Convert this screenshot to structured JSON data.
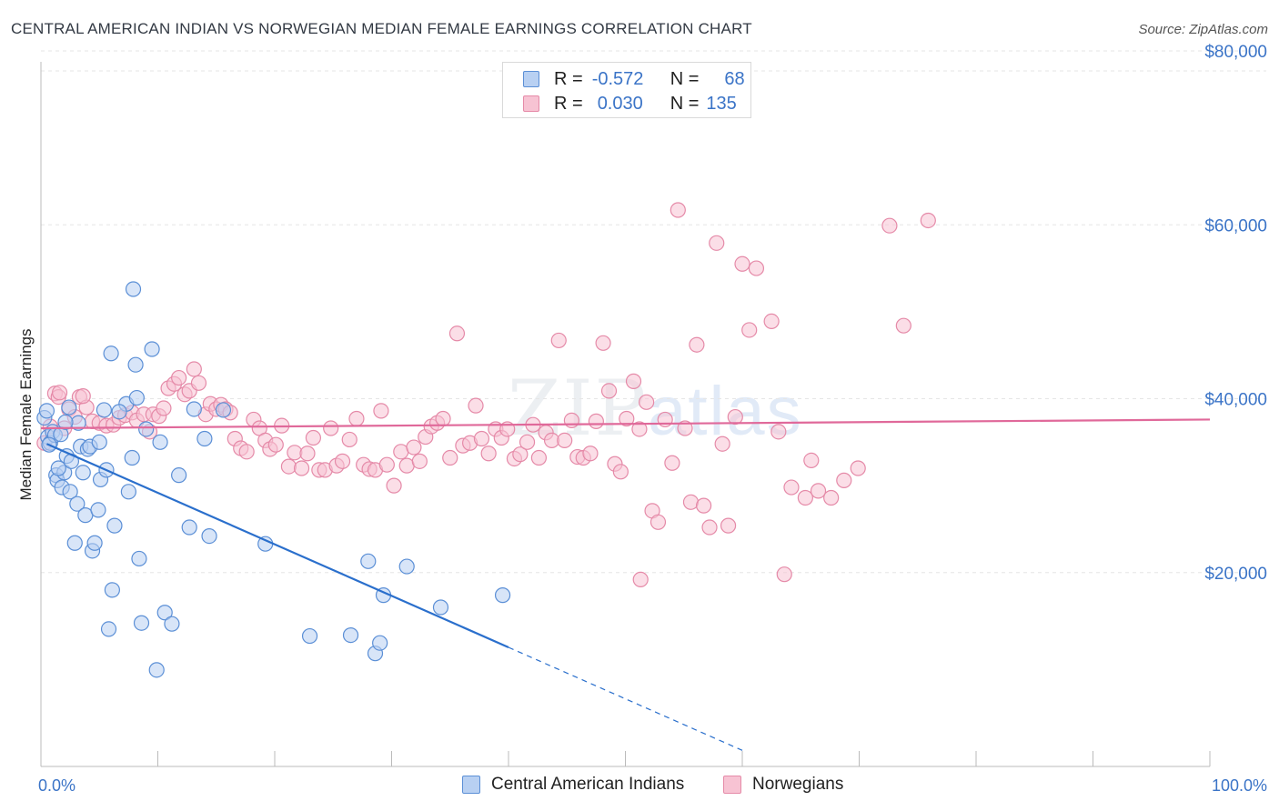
{
  "title": "CENTRAL AMERICAN INDIAN VS NORWEGIAN MEDIAN FEMALE EARNINGS CORRELATION CHART",
  "source": "Source: ZipAtlas.com",
  "watermark": {
    "zip": "ZIP",
    "atlas": "atlas"
  },
  "legend": {
    "r_label": "R =",
    "n_label": "N =",
    "series": [
      {
        "name": "Central American Indians",
        "r": "-0.572",
        "n": "68"
      },
      {
        "name": "Norwegians",
        "r": "0.030",
        "n": "135"
      }
    ]
  },
  "colors": {
    "blue_fill": "#b8d0f2",
    "blue_stroke": "#5b8fd6",
    "blue_line": "#2a6fcc",
    "pink_fill": "#f7c3d3",
    "pink_stroke": "#e58aa8",
    "pink_line": "#e0699a",
    "accent": "#3b74c7"
  },
  "chart_data": {
    "type": "scatter",
    "title": "CENTRAL AMERICAN INDIAN VS NORWEGIAN MEDIAN FEMALE EARNINGS CORRELATION CHART",
    "xlabel": "",
    "ylabel": "Median Female Earnings",
    "xlim": [
      0,
      100
    ],
    "ylim": [
      0,
      80000
    ],
    "y_ticks": [
      20000,
      40000,
      60000,
      80000
    ],
    "y_tick_labels": [
      "$20,000",
      "$40,000",
      "$60,000",
      "$80,000"
    ],
    "x_tick_labels": [
      "0.0%",
      "100.0%"
    ],
    "grid": true,
    "legend_position": "top-center",
    "series": [
      {
        "name": "Central American Indians",
        "color": "blue",
        "trend": {
          "x0": 0.5,
          "y0": 34800,
          "x1": 40,
          "y1": 11400,
          "dashed_to_x": 60
        },
        "points": [
          [
            0.3,
            37800
          ],
          [
            0.5,
            38600
          ],
          [
            0.6,
            35600
          ],
          [
            0.8,
            34900
          ],
          [
            1.0,
            36200
          ],
          [
            1.2,
            35800
          ],
          [
            1.3,
            31200
          ],
          [
            1.4,
            30600
          ],
          [
            1.7,
            35900
          ],
          [
            1.8,
            29800
          ],
          [
            2.0,
            31500
          ],
          [
            2.2,
            33400
          ],
          [
            2.4,
            39000
          ],
          [
            2.5,
            29300
          ],
          [
            2.6,
            32800
          ],
          [
            2.9,
            23400
          ],
          [
            3.1,
            27900
          ],
          [
            3.2,
            37200
          ],
          [
            3.4,
            34500
          ],
          [
            3.6,
            31500
          ],
          [
            3.8,
            26600
          ],
          [
            4.0,
            34200
          ],
          [
            4.2,
            34500
          ],
          [
            4.4,
            22500
          ],
          [
            4.6,
            23400
          ],
          [
            4.9,
            27200
          ],
          [
            5.1,
            30700
          ],
          [
            5.4,
            38700
          ],
          [
            5.6,
            31800
          ],
          [
            5.8,
            13500
          ],
          [
            6.0,
            45200
          ],
          [
            6.3,
            25400
          ],
          [
            6.1,
            18000
          ],
          [
            7.3,
            39400
          ],
          [
            7.5,
            29300
          ],
          [
            7.8,
            33200
          ],
          [
            7.9,
            52600
          ],
          [
            8.1,
            43900
          ],
          [
            8.2,
            40100
          ],
          [
            8.4,
            21600
          ],
          [
            8.6,
            14200
          ],
          [
            9.0,
            36500
          ],
          [
            9.5,
            45700
          ],
          [
            9.9,
            8800
          ],
          [
            10.2,
            35000
          ],
          [
            10.6,
            15400
          ],
          [
            11.2,
            14100
          ],
          [
            11.8,
            31200
          ],
          [
            12.7,
            25200
          ],
          [
            13.1,
            38800
          ],
          [
            14.0,
            35400
          ],
          [
            14.4,
            24200
          ],
          [
            15.6,
            38700
          ],
          [
            19.2,
            23300
          ],
          [
            23.0,
            12700
          ],
          [
            26.5,
            12800
          ],
          [
            28.0,
            21300
          ],
          [
            28.6,
            10700
          ],
          [
            29.0,
            11900
          ],
          [
            29.3,
            17400
          ],
          [
            31.3,
            20700
          ],
          [
            34.2,
            16000
          ],
          [
            39.5,
            17400
          ],
          [
            0.7,
            34700
          ],
          [
            1.5,
            32000
          ],
          [
            5.0,
            35000
          ],
          [
            2.1,
            37300
          ],
          [
            6.7,
            38500
          ]
        ]
      },
      {
        "name": "Norwegians",
        "color": "pink",
        "trend": {
          "x0": 0,
          "y0": 36600,
          "x1": 100,
          "y1": 37600
        },
        "points": [
          [
            0.3,
            34900
          ],
          [
            0.8,
            36800
          ],
          [
            1.2,
            40600
          ],
          [
            1.5,
            40200
          ],
          [
            2.0,
            36600
          ],
          [
            2.4,
            38800
          ],
          [
            2.9,
            37900
          ],
          [
            3.3,
            40200
          ],
          [
            3.9,
            39000
          ],
          [
            4.4,
            37400
          ],
          [
            5.0,
            37200
          ],
          [
            5.6,
            36900
          ],
          [
            6.2,
            37000
          ],
          [
            6.7,
            37800
          ],
          [
            7.2,
            38100
          ],
          [
            7.8,
            38400
          ],
          [
            8.2,
            37500
          ],
          [
            8.8,
            38200
          ],
          [
            9.3,
            36200
          ],
          [
            9.6,
            38200
          ],
          [
            10.1,
            38000
          ],
          [
            10.5,
            38900
          ],
          [
            10.9,
            41200
          ],
          [
            11.4,
            41700
          ],
          [
            11.8,
            42400
          ],
          [
            12.3,
            40500
          ],
          [
            12.7,
            40900
          ],
          [
            13.1,
            43400
          ],
          [
            13.5,
            41800
          ],
          [
            14.1,
            38200
          ],
          [
            14.5,
            39400
          ],
          [
            15.0,
            38800
          ],
          [
            15.4,
            39300
          ],
          [
            15.8,
            38800
          ],
          [
            16.2,
            38400
          ],
          [
            16.6,
            35400
          ],
          [
            17.1,
            34300
          ],
          [
            17.6,
            33900
          ],
          [
            18.2,
            37600
          ],
          [
            18.7,
            36600
          ],
          [
            19.2,
            35200
          ],
          [
            19.6,
            34200
          ],
          [
            20.1,
            34700
          ],
          [
            20.6,
            36900
          ],
          [
            21.2,
            32200
          ],
          [
            21.7,
            33800
          ],
          [
            22.3,
            32000
          ],
          [
            22.8,
            33700
          ],
          [
            23.3,
            35500
          ],
          [
            23.8,
            31800
          ],
          [
            24.3,
            31800
          ],
          [
            24.8,
            36600
          ],
          [
            25.3,
            32300
          ],
          [
            25.8,
            32800
          ],
          [
            26.4,
            35300
          ],
          [
            27.0,
            37700
          ],
          [
            27.6,
            32400
          ],
          [
            28.1,
            31900
          ],
          [
            28.6,
            31800
          ],
          [
            29.1,
            38600
          ],
          [
            29.6,
            32400
          ],
          [
            30.2,
            30000
          ],
          [
            30.8,
            33900
          ],
          [
            31.3,
            32300
          ],
          [
            31.9,
            34400
          ],
          [
            32.4,
            32800
          ],
          [
            32.9,
            35600
          ],
          [
            33.4,
            36800
          ],
          [
            33.9,
            37200
          ],
          [
            34.4,
            37700
          ],
          [
            35.0,
            33200
          ],
          [
            35.6,
            47500
          ],
          [
            36.1,
            34600
          ],
          [
            36.7,
            34900
          ],
          [
            37.2,
            39200
          ],
          [
            37.7,
            35400
          ],
          [
            38.3,
            33700
          ],
          [
            38.9,
            36500
          ],
          [
            39.4,
            35500
          ],
          [
            39.9,
            36500
          ],
          [
            40.5,
            33100
          ],
          [
            41.0,
            33600
          ],
          [
            41.6,
            35000
          ],
          [
            42.1,
            37000
          ],
          [
            42.6,
            33200
          ],
          [
            43.2,
            36100
          ],
          [
            43.7,
            35200
          ],
          [
            44.3,
            46700
          ],
          [
            44.8,
            35200
          ],
          [
            45.4,
            37500
          ],
          [
            45.9,
            33300
          ],
          [
            46.4,
            33200
          ],
          [
            47.0,
            33700
          ],
          [
            47.5,
            37400
          ],
          [
            48.1,
            46400
          ],
          [
            48.6,
            40900
          ],
          [
            49.1,
            32500
          ],
          [
            49.6,
            31600
          ],
          [
            50.1,
            37700
          ],
          [
            50.7,
            42000
          ],
          [
            51.2,
            36500
          ],
          [
            51.8,
            39600
          ],
          [
            52.3,
            27100
          ],
          [
            52.8,
            25800
          ],
          [
            53.4,
            37600
          ],
          [
            54.0,
            32600
          ],
          [
            54.5,
            61700
          ],
          [
            55.1,
            36600
          ],
          [
            55.6,
            28100
          ],
          [
            56.1,
            46200
          ],
          [
            56.7,
            27700
          ],
          [
            57.2,
            25200
          ],
          [
            57.8,
            57900
          ],
          [
            58.3,
            34800
          ],
          [
            58.8,
            25400
          ],
          [
            59.4,
            37900
          ],
          [
            60.0,
            55500
          ],
          [
            60.6,
            47900
          ],
          [
            61.2,
            55000
          ],
          [
            62.5,
            48900
          ],
          [
            63.1,
            36200
          ],
          [
            63.6,
            19800
          ],
          [
            64.2,
            29800
          ],
          [
            65.4,
            28600
          ],
          [
            65.9,
            32900
          ],
          [
            66.5,
            29400
          ],
          [
            67.6,
            28600
          ],
          [
            68.7,
            30600
          ],
          [
            69.9,
            32000
          ],
          [
            72.6,
            59900
          ],
          [
            73.8,
            48400
          ],
          [
            75.9,
            60500
          ],
          [
            51.3,
            19200
          ],
          [
            1.6,
            40700
          ],
          [
            3.6,
            40300
          ]
        ]
      }
    ]
  }
}
